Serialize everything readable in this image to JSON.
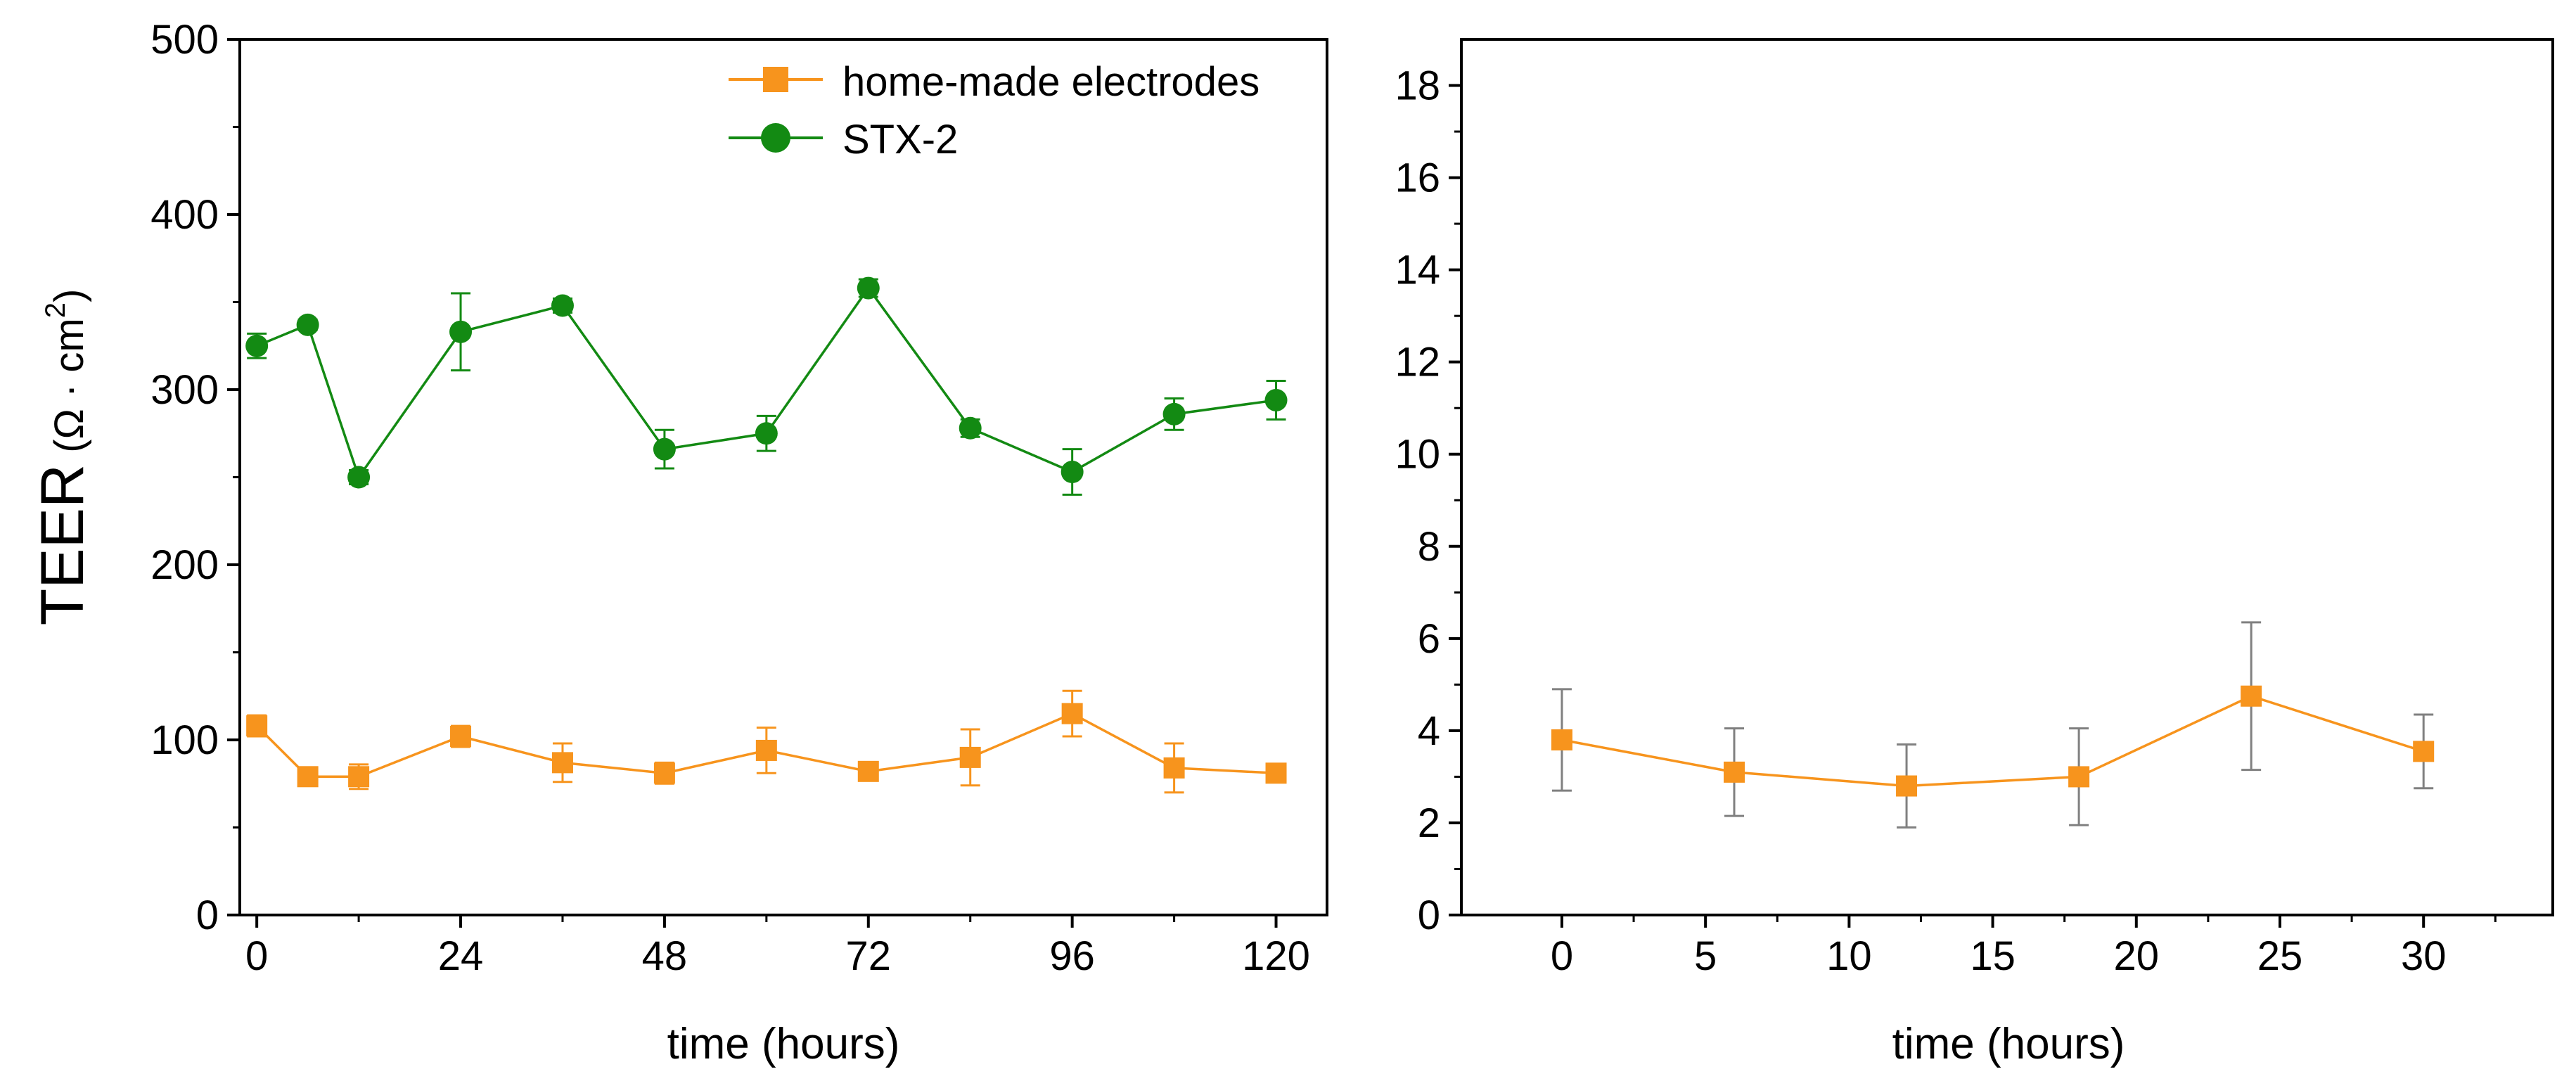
{
  "colors": {
    "home_made": "#f7941d",
    "stx2": "#138a13",
    "errbar_right": "#808080",
    "axis": "#000000"
  },
  "chart_data": [
    {
      "type": "line",
      "panel": "left",
      "xlabel": "time (hours)",
      "ylabel": "TEER",
      "ylabel_unit_open": " (Ω · cm",
      "ylabel_unit_sup": "2",
      "ylabel_unit_close": ")",
      "xlim": [
        -2,
        126
      ],
      "ylim": [
        0,
        500
      ],
      "xticks": [
        0,
        24,
        48,
        72,
        96,
        120
      ],
      "xticks_minor": [
        12,
        36,
        60,
        84,
        108
      ],
      "yticks": [
        0,
        100,
        200,
        300,
        400,
        500
      ],
      "yticks_minor": [
        50,
        150,
        250,
        350,
        450
      ],
      "legend_position": "top-right",
      "series": [
        {
          "name": "home-made electrodes",
          "marker": "square",
          "x": [
            0,
            6,
            12,
            24,
            36,
            48,
            60,
            72,
            84,
            96,
            108,
            120
          ],
          "y": [
            108,
            79,
            79,
            102,
            87,
            81,
            94,
            82,
            90,
            115,
            84,
            81
          ],
          "err": [
            6,
            4,
            7,
            6,
            11,
            6,
            13,
            3,
            16,
            13,
            14,
            4
          ]
        },
        {
          "name": "STX-2",
          "marker": "circle",
          "x": [
            0,
            6,
            12,
            24,
            36,
            48,
            60,
            72,
            84,
            96,
            108,
            120
          ],
          "y": [
            325,
            337,
            250,
            333,
            348,
            266,
            275,
            358,
            278,
            253,
            286,
            294
          ],
          "err": [
            7,
            3,
            4,
            22,
            4,
            11,
            10,
            5,
            5,
            13,
            9,
            11
          ]
        }
      ]
    },
    {
      "type": "line",
      "panel": "right",
      "xlabel": "time (hours)",
      "xlim": [
        -3.5,
        34.5
      ],
      "ylim": [
        0,
        19
      ],
      "xticks": [
        0,
        5,
        10,
        15,
        20,
        25,
        30
      ],
      "xticks_minor": [
        2.5,
        7.5,
        12.5,
        17.5,
        22.5,
        27.5,
        32.5
      ],
      "yticks": [
        0,
        2,
        4,
        6,
        8,
        10,
        12,
        14,
        16,
        18
      ],
      "yticks_minor": [
        1,
        3,
        5,
        7,
        9,
        11,
        13,
        15,
        17
      ],
      "series": [
        {
          "name": "home-made electrodes",
          "marker": "square",
          "x": [
            0,
            6,
            12,
            18,
            24,
            30
          ],
          "y": [
            3.8,
            3.1,
            2.8,
            3.0,
            4.75,
            3.55
          ],
          "err": [
            1.1,
            0.95,
            0.9,
            1.05,
            1.6,
            0.8
          ]
        }
      ]
    }
  ]
}
